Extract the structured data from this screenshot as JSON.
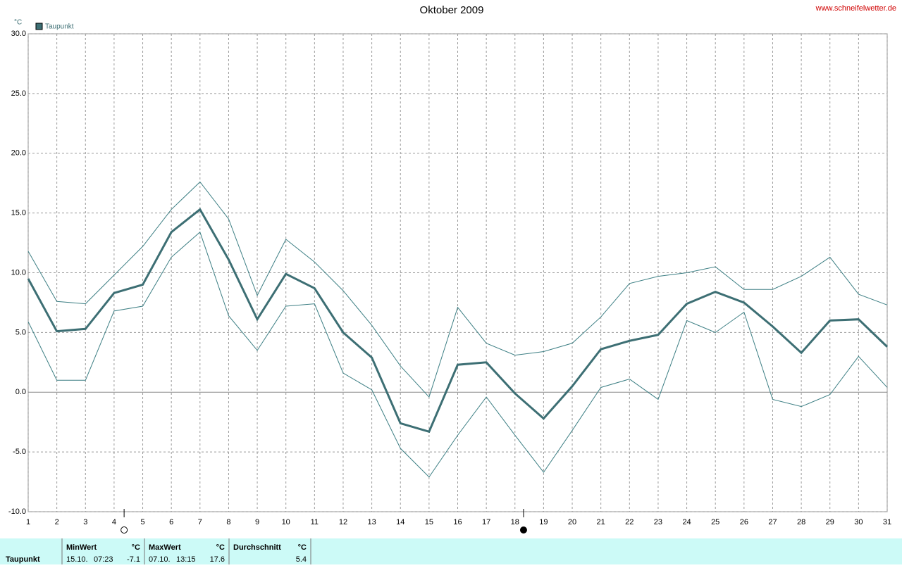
{
  "chart_data": {
    "type": "line",
    "title": "Oktober 2009",
    "source": "www.schneifelwetter.de",
    "y_unit": "°C",
    "x": [
      1,
      2,
      3,
      4,
      5,
      6,
      7,
      8,
      9,
      10,
      11,
      12,
      13,
      14,
      15,
      16,
      17,
      18,
      19,
      20,
      21,
      22,
      23,
      24,
      25,
      26,
      27,
      28,
      29,
      30,
      31
    ],
    "series": [
      {
        "name": "Taupunkt",
        "color": "#3d6f74",
        "width": 3,
        "values": [
          9.5,
          5.1,
          5.3,
          8.3,
          9.0,
          13.4,
          15.3,
          11.1,
          6.1,
          9.9,
          8.7,
          5.0,
          2.9,
          -2.6,
          -3.3,
          2.3,
          2.5,
          -0.1,
          -2.2,
          0.5,
          3.6,
          4.3,
          4.8,
          7.4,
          8.4,
          7.5,
          5.5,
          3.3,
          6.0,
          6.1,
          3.8
        ]
      },
      {
        "color": "#3d7f84",
        "width": 1,
        "values": [
          11.8,
          7.6,
          7.4,
          9.8,
          12.2,
          15.3,
          17.6,
          14.5,
          8.1,
          12.8,
          10.9,
          8.5,
          5.6,
          2.2,
          -0.4,
          7.1,
          4.1,
          3.1,
          3.4,
          4.1,
          6.3,
          9.1,
          9.7,
          10.0,
          10.5,
          8.6,
          8.6,
          9.7,
          11.3,
          8.2,
          7.3
        ]
      },
      {
        "color": "#3d7f84",
        "width": 1,
        "values": [
          5.9,
          1.0,
          1.0,
          6.8,
          7.2,
          11.3,
          13.4,
          6.4,
          3.5,
          7.2,
          7.4,
          1.6,
          0.2,
          -4.7,
          -7.1,
          -3.6,
          -0.4,
          -3.6,
          -6.7,
          -3.2,
          0.4,
          1.1,
          -0.6,
          6.0,
          5.0,
          6.7,
          -0.6,
          -1.2,
          -0.2,
          3.0,
          0.4
        ]
      }
    ],
    "xlim": [
      1,
      31
    ],
    "xticks": [
      1,
      2,
      3,
      4,
      5,
      6,
      7,
      8,
      9,
      10,
      11,
      12,
      13,
      14,
      15,
      16,
      17,
      18,
      19,
      20,
      21,
      22,
      23,
      24,
      25,
      26,
      27,
      28,
      29,
      30,
      31
    ],
    "ylim": [
      -10,
      30
    ],
    "yticks": [
      {
        "value": -10,
        "label": "-10.0"
      },
      {
        "value": -5,
        "label": "-5.0"
      },
      {
        "value": 0,
        "label": "0.0"
      },
      {
        "value": 5,
        "label": "5.0"
      },
      {
        "value": 10,
        "label": "10.0"
      },
      {
        "value": 15,
        "label": "15.0"
      },
      {
        "value": 20,
        "label": "20.0"
      },
      {
        "value": 25,
        "label": "25.0"
      },
      {
        "value": 30,
        "label": "30.0"
      }
    ],
    "grid": true,
    "markers": [
      {
        "x": 4.35,
        "fill": "#ffffff"
      },
      {
        "x": 18.3,
        "fill": "#000000"
      }
    ]
  },
  "summary": {
    "label": "Taupunkt",
    "columns": [
      {
        "header": "MinWert",
        "unit": "°C",
        "date": "15.10.",
        "time": "07:23",
        "value": -7.1
      },
      {
        "header": "MaxWert",
        "unit": "°C",
        "date": "07.10.",
        "time": "13:15",
        "value": 17.6
      },
      {
        "header": "Durchschnitt",
        "unit": "°C",
        "value": 5.4
      }
    ]
  }
}
